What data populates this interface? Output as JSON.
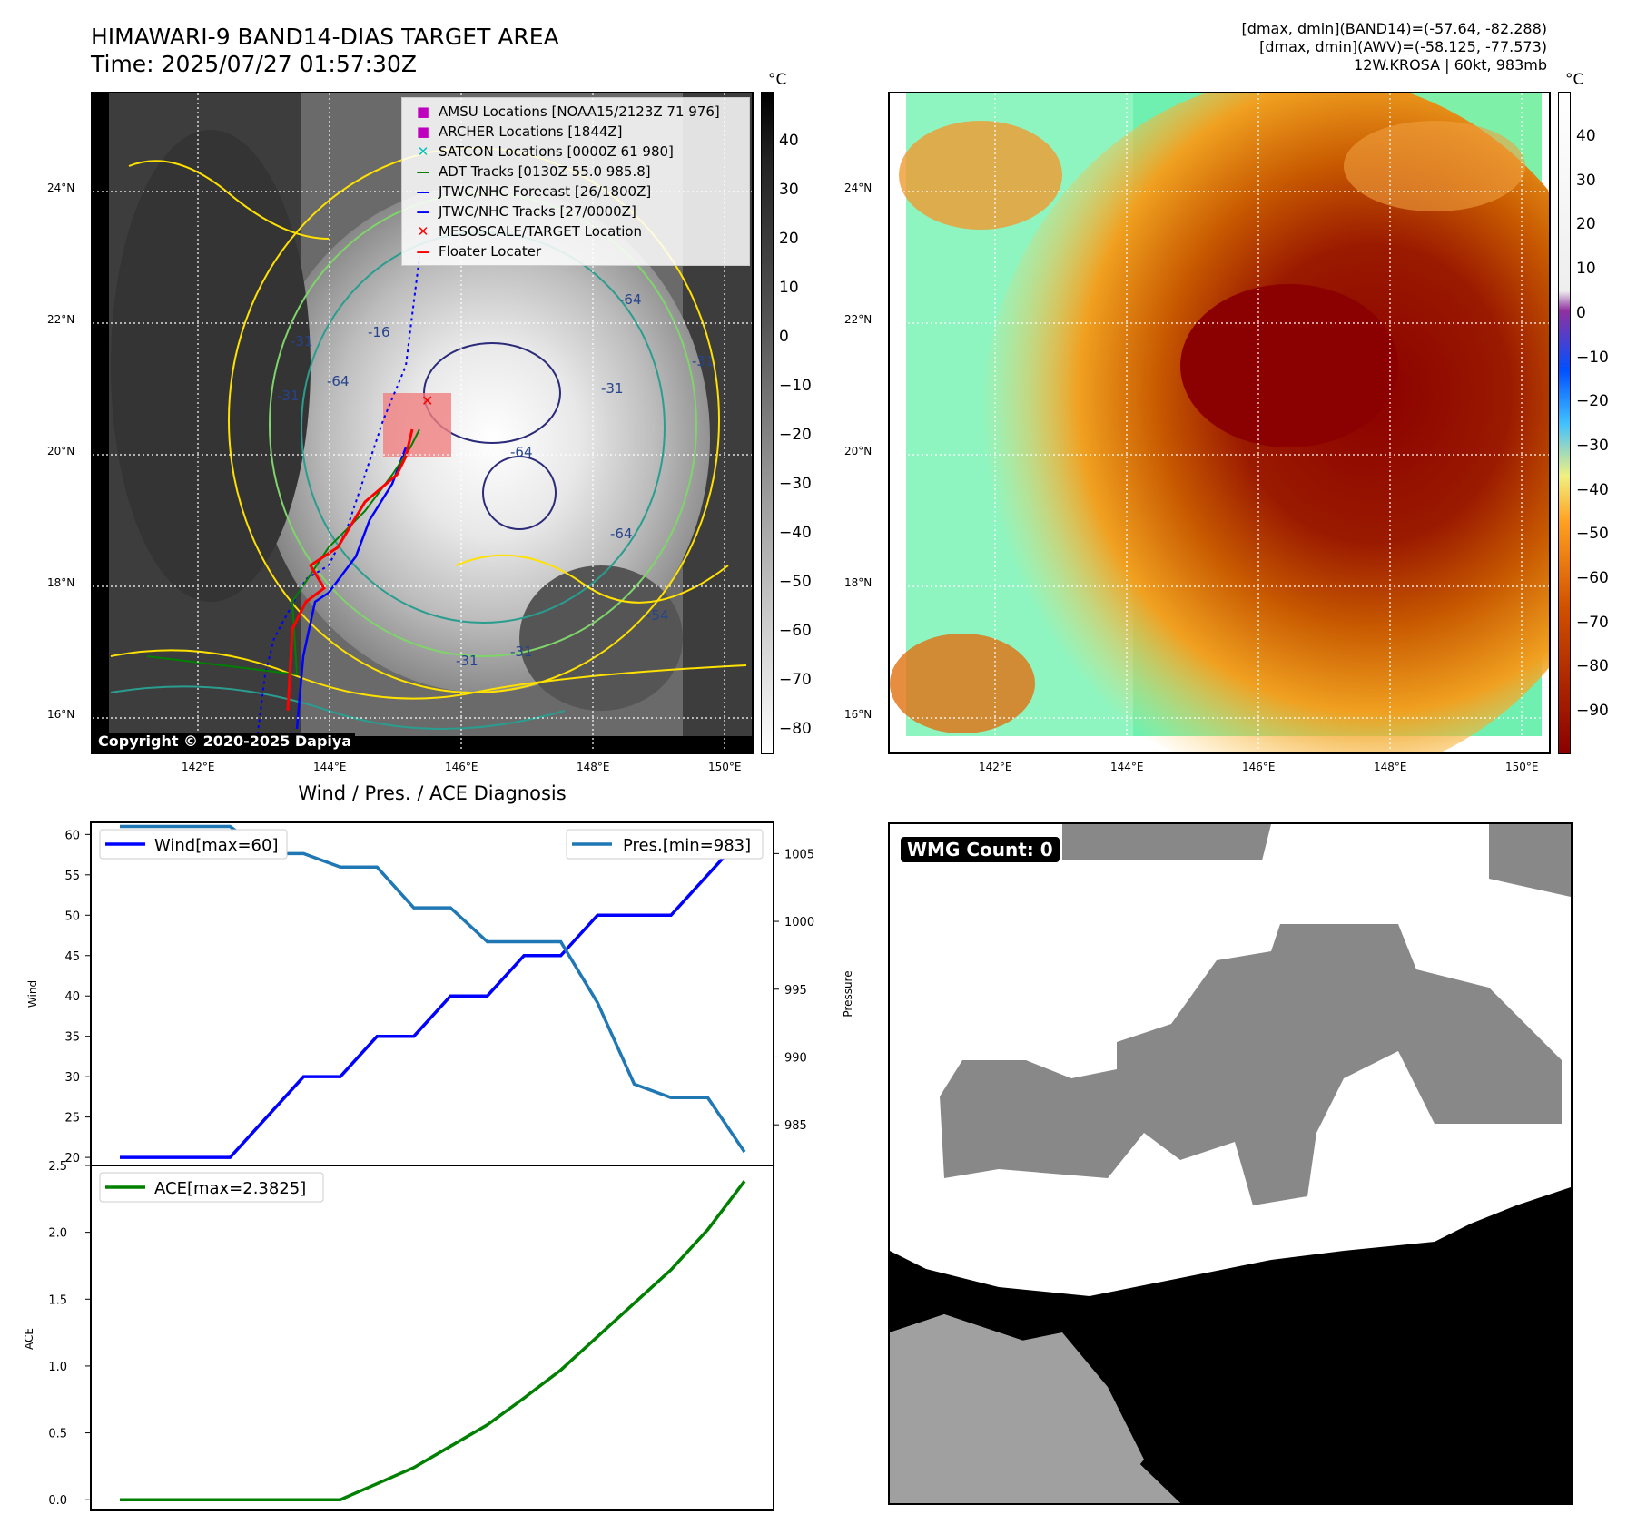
{
  "header": {
    "title_line1": "HIMAWARI-9 BAND14-DIAS TARGET AREA",
    "title_line2": "Time: 2025/07/27 01:57:30Z",
    "info_line1": "[dmax, dmin](BAND14)=(-57.64, -82.288)",
    "info_line2": "[dmax, dmin](AWV)=(-58.125, -77.573)",
    "info_line3": "12W.KROSA | 60kt, 983mb"
  },
  "map": {
    "lat_labels": [
      "24°N",
      "22°N",
      "20°N",
      "18°N",
      "16°N"
    ],
    "lon_labels": [
      "142°E",
      "144°E",
      "146°E",
      "148°E",
      "150°E"
    ],
    "copyright": "Copyright © 2020-2025 Dapiya",
    "contour_labels": [
      "-16",
      "-31",
      "-64",
      "-31",
      "-64",
      "-64",
      "-31",
      "-31",
      "-31",
      "-31",
      "-54",
      "-64"
    ],
    "legend": [
      {
        "label": "AMSU Locations [NOAA15/2123Z 71 976]",
        "color": "#bf00bf"
      },
      {
        "label": "ARCHER Locations [1844Z]",
        "color": "#bf00bf"
      },
      {
        "label": "SATCON Locations [0000Z 61 980]",
        "color": "#00bfbf"
      },
      {
        "label": "ADT Tracks [0130Z 55.0 985.8]",
        "color": "#008000"
      },
      {
        "label": "JTWC/NHC Forecast [26/1800Z]",
        "color": "#0000ff"
      },
      {
        "label": "JTWC/NHC Tracks [27/0000Z]",
        "color": "#0000ff"
      },
      {
        "label": "MESOSCALE/TARGET Location",
        "color": "#ff0000"
      },
      {
        "label": "Floater Locater",
        "color": "#ff0000"
      }
    ],
    "colorbar_unit": "°C",
    "gray_colorbar_ticks": [
      "40",
      "30",
      "20",
      "10",
      "0",
      "−10",
      "−20",
      "−30",
      "−40",
      "−50",
      "−60",
      "−70",
      "−80"
    ],
    "color_colorbar_ticks": [
      "40",
      "30",
      "20",
      "10",
      "0",
      "−10",
      "−20",
      "−30",
      "−40",
      "−50",
      "−60",
      "−70",
      "−80",
      "−90"
    ]
  },
  "chart_data": [
    {
      "type": "line",
      "title": "Wind / Pres. / ACE Diagnosis",
      "xlabel": "",
      "ylabel": "Wind",
      "ylabel_right": "Pressure",
      "ylim": [
        19,
        61.5
      ],
      "ylim_right": [
        982,
        1007.3
      ],
      "yticks": [
        20,
        25,
        30,
        35,
        40,
        45,
        50,
        55,
        60
      ],
      "yticks_right": [
        985,
        990,
        995,
        1000,
        1005
      ],
      "x": [
        0,
        1,
        2,
        3,
        4,
        5,
        6,
        7,
        8,
        9,
        10,
        11,
        12,
        13,
        14,
        15,
        16,
        17
      ],
      "series": [
        {
          "name": "Wind[max=60]",
          "color": "#0000ff",
          "axis": "left",
          "values": [
            20,
            20,
            20,
            20,
            25,
            30,
            30,
            35,
            35,
            40,
            40,
            45,
            45,
            50,
            50,
            50,
            55,
            60
          ]
        },
        {
          "name": "Pres.[min=983]",
          "color": "#1f77b4",
          "axis": "right",
          "values": [
            1007,
            1007,
            1007,
            1007,
            1005,
            1005,
            1004,
            1004,
            1001,
            1001,
            998.5,
            998.5,
            998.5,
            994,
            988,
            987,
            987,
            983
          ]
        }
      ]
    },
    {
      "type": "line",
      "title": "",
      "xlabel": "",
      "ylabel": "ACE",
      "ylim": [
        -0.08,
        2.5
      ],
      "yticks": [
        0.0,
        0.5,
        1.0,
        1.5,
        2.0,
        2.5
      ],
      "ytick_labels": [
        "0.0",
        "0.5",
        "1.0",
        "1.5",
        "2.0",
        "2.5"
      ],
      "x": [
        0,
        1,
        2,
        3,
        4,
        5,
        6,
        7,
        8,
        9,
        10,
        11,
        12,
        13,
        14,
        15,
        16,
        17
      ],
      "series": [
        {
          "name": "ACE[max=2.3825]",
          "color": "#008000",
          "values": [
            0,
            0,
            0,
            0,
            0,
            0,
            0,
            0.12,
            0.24,
            0.4,
            0.56,
            0.76,
            0.97,
            1.22,
            1.47,
            1.72,
            2.02,
            2.3825
          ]
        }
      ]
    }
  ],
  "wmg": {
    "badge": "WMG Count: 0"
  }
}
